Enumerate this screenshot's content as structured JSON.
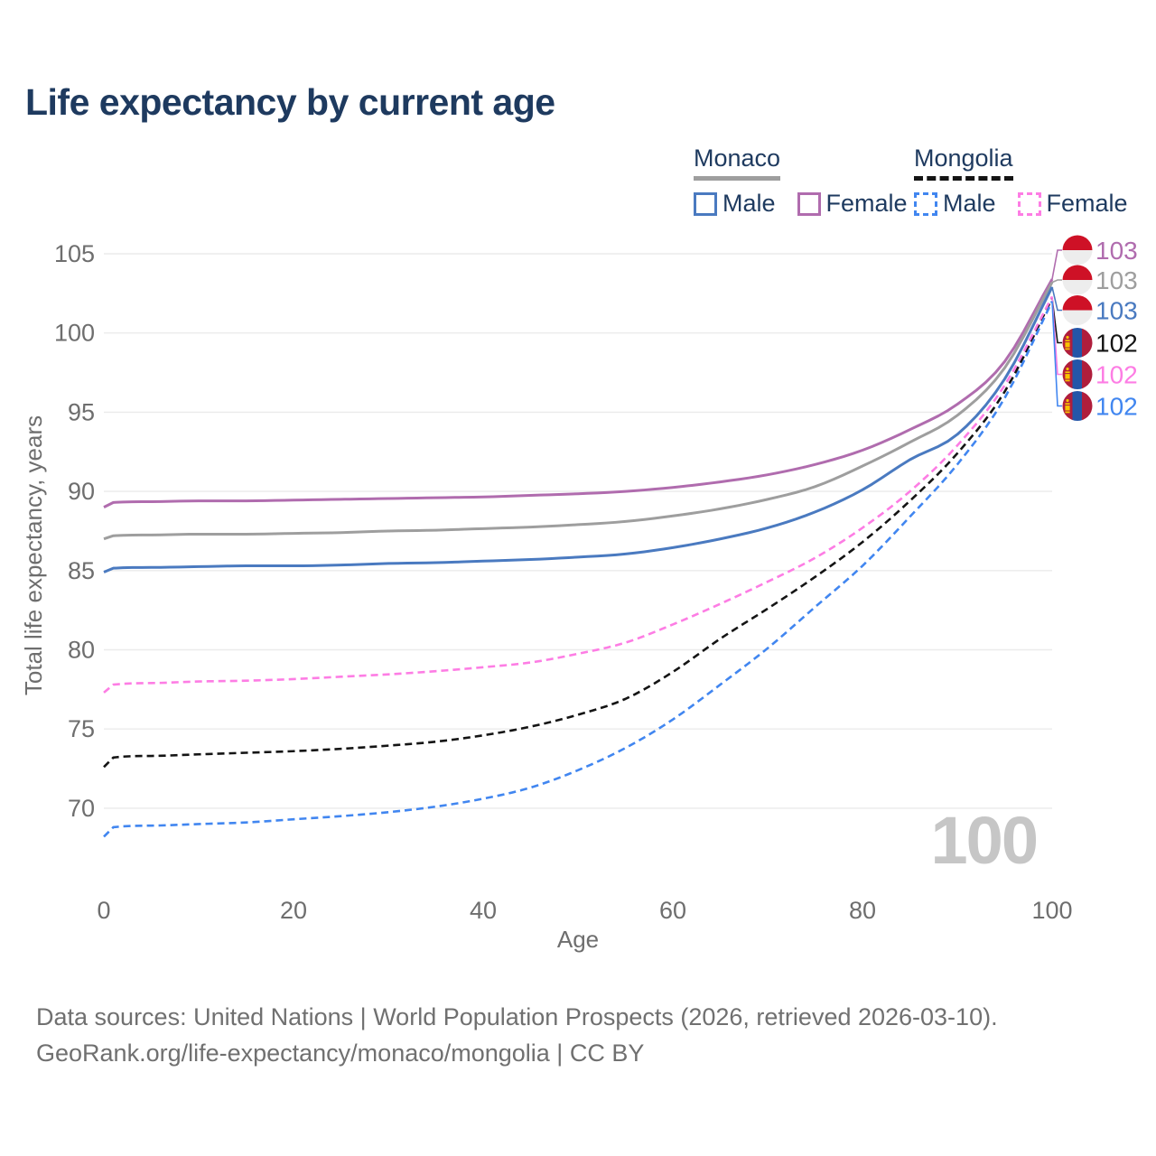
{
  "title": "Life expectancy by current age",
  "legend": {
    "groups": [
      {
        "name": "Monaco",
        "underline_style": "solid",
        "underline_color": "#9e9e9e",
        "items": [
          {
            "label": "Male",
            "color": "#4a7ac0",
            "dashed": false
          },
          {
            "label": "Female",
            "color": "#b06cae",
            "dashed": false
          }
        ]
      },
      {
        "name": "Mongolia",
        "underline_style": "dashed",
        "underline_color": "#141414",
        "items": [
          {
            "label": "Male",
            "color": "#4186f0",
            "dashed": true
          },
          {
            "label": "Female",
            "color": "#fd7de4",
            "dashed": true
          }
        ]
      }
    ]
  },
  "chart_data": {
    "type": "line",
    "title": "Life expectancy by current age",
    "xlabel": "Age",
    "ylabel": "Total life expectancy, years",
    "xticks": [
      0,
      20,
      40,
      60,
      80,
      100
    ],
    "yticks": [
      70,
      75,
      80,
      85,
      90,
      95,
      100,
      105
    ],
    "xlim": [
      0,
      100
    ],
    "ylim": [
      67.5,
      105.5
    ],
    "grid": "horizontal",
    "age_indicator": "100",
    "x": [
      0,
      1,
      5,
      10,
      15,
      20,
      25,
      30,
      35,
      40,
      45,
      50,
      55,
      60,
      65,
      70,
      75,
      80,
      85,
      90,
      95,
      100
    ],
    "series": [
      {
        "id": "monaco-female",
        "country": "Monaco",
        "sex": "Female",
        "color": "#b06cae",
        "dash": false,
        "end_label": "103",
        "flag": "monaco",
        "values": [
          89.0,
          89.3,
          89.35,
          89.4,
          89.4,
          89.45,
          89.5,
          89.55,
          89.6,
          89.65,
          89.75,
          89.85,
          90.0,
          90.25,
          90.6,
          91.05,
          91.7,
          92.6,
          93.9,
          95.5,
          98.2,
          103.4
        ]
      },
      {
        "id": "monaco-both",
        "country": "Monaco",
        "sex": "Both sexes",
        "color": "#9e9e9e",
        "dash": false,
        "end_label": "103",
        "flag": "monaco",
        "values": [
          87.0,
          87.2,
          87.25,
          87.3,
          87.3,
          87.35,
          87.4,
          87.5,
          87.55,
          87.65,
          87.75,
          87.9,
          88.1,
          88.45,
          88.9,
          89.5,
          90.3,
          91.6,
          93.1,
          94.8,
          97.8,
          103.2
        ]
      },
      {
        "id": "monaco-male",
        "country": "Monaco",
        "sex": "Male",
        "color": "#4a7ac0",
        "dash": false,
        "end_label": "103",
        "flag": "monaco",
        "values": [
          84.9,
          85.15,
          85.2,
          85.25,
          85.3,
          85.3,
          85.35,
          85.45,
          85.5,
          85.6,
          85.7,
          85.85,
          86.05,
          86.45,
          87.0,
          87.7,
          88.7,
          90.1,
          92.0,
          93.6,
          97.1,
          102.9
        ]
      },
      {
        "id": "mongolia-both",
        "country": "Mongolia",
        "sex": "Both sexes",
        "color": "#141414",
        "dash": true,
        "end_label": "102",
        "flag": "mongolia",
        "values": [
          72.6,
          73.2,
          73.3,
          73.4,
          73.5,
          73.6,
          73.75,
          73.95,
          74.2,
          74.6,
          75.15,
          75.9,
          76.9,
          78.6,
          80.7,
          82.6,
          84.6,
          86.8,
          89.4,
          92.4,
          96.3,
          102.2
        ]
      },
      {
        "id": "mongolia-female",
        "country": "Mongolia",
        "sex": "Female",
        "color": "#fd7de4",
        "dash": true,
        "end_label": "102",
        "flag": "mongolia",
        "values": [
          77.3,
          77.8,
          77.9,
          78.0,
          78.05,
          78.15,
          78.3,
          78.45,
          78.65,
          78.9,
          79.2,
          79.75,
          80.45,
          81.6,
          82.9,
          84.3,
          85.8,
          87.7,
          90.0,
          92.9,
          96.7,
          102.3
        ]
      },
      {
        "id": "mongolia-male",
        "country": "Mongolia",
        "sex": "Male",
        "color": "#4186f0",
        "dash": true,
        "end_label": "102",
        "flag": "mongolia",
        "values": [
          68.2,
          68.8,
          68.9,
          69.0,
          69.1,
          69.3,
          69.5,
          69.75,
          70.1,
          70.6,
          71.3,
          72.4,
          73.8,
          75.6,
          77.8,
          80.1,
          82.7,
          85.3,
          88.4,
          91.7,
          95.9,
          102.0
        ]
      }
    ]
  },
  "colors": {
    "title": "#1e3a5f",
    "axis_text": "#6e6e6e",
    "grid": "#ebebeb",
    "watermark": "#c6c6c6",
    "monaco_flag_red": "#ce1126",
    "monaco_flag_white": "#ededed",
    "mongolia_flag_red": "#b01e3c",
    "mongolia_flag_blue": "#2456a8",
    "mongolia_flag_yellow": "#f8c300"
  },
  "footer": {
    "line1": "Data sources: United Nations | World Population Prospects (2026, retrieved 2026-03-10).",
    "line2": "GeoRank.org/life-expectancy/monaco/mongolia | CC BY"
  }
}
